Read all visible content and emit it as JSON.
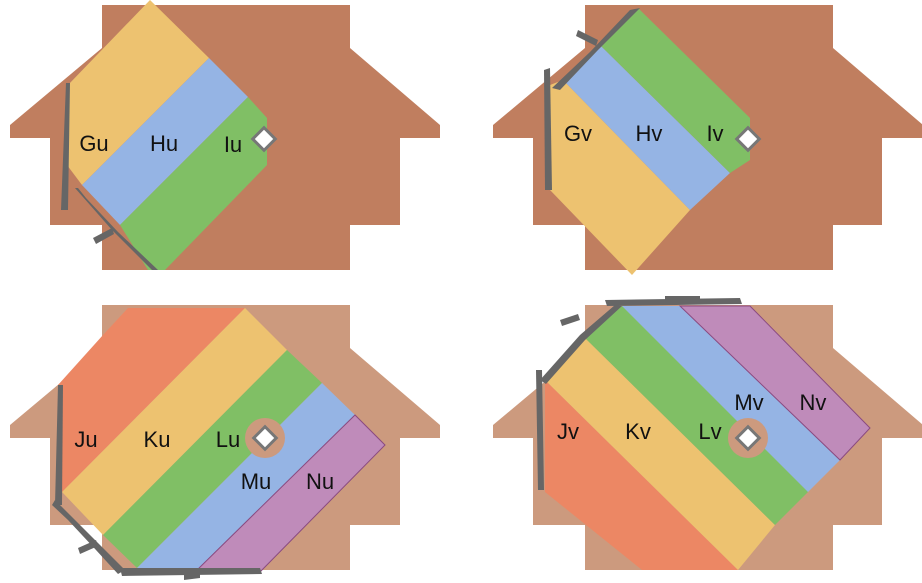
{
  "colors": {
    "body_dark": "#c07e5f",
    "body_light": "#cc9a7e",
    "orange_red": "#ec8764",
    "yellow": "#edc270",
    "green": "#80bf65",
    "blue": "#95b4e4",
    "purple": "#bf8bba",
    "hole": "#ffffff",
    "hole_ring": "#cc9a7e",
    "edge": "#666666"
  },
  "panels": [
    {
      "id": "top-left",
      "labels": {
        "g": "Gu",
        "h": "Hu",
        "i": "Iu"
      }
    },
    {
      "id": "top-right",
      "labels": {
        "g": "Gv",
        "h": "Hv",
        "i": "Iv"
      }
    },
    {
      "id": "bottom-left",
      "labels": {
        "j": "Ju",
        "k": "Ku",
        "l": "Lu",
        "m": "Mu",
        "n": "Nu"
      }
    },
    {
      "id": "bottom-right",
      "labels": {
        "j": "Jv",
        "k": "Kv",
        "l": "Lv",
        "m": "Mv",
        "n": "Nv"
      }
    }
  ]
}
